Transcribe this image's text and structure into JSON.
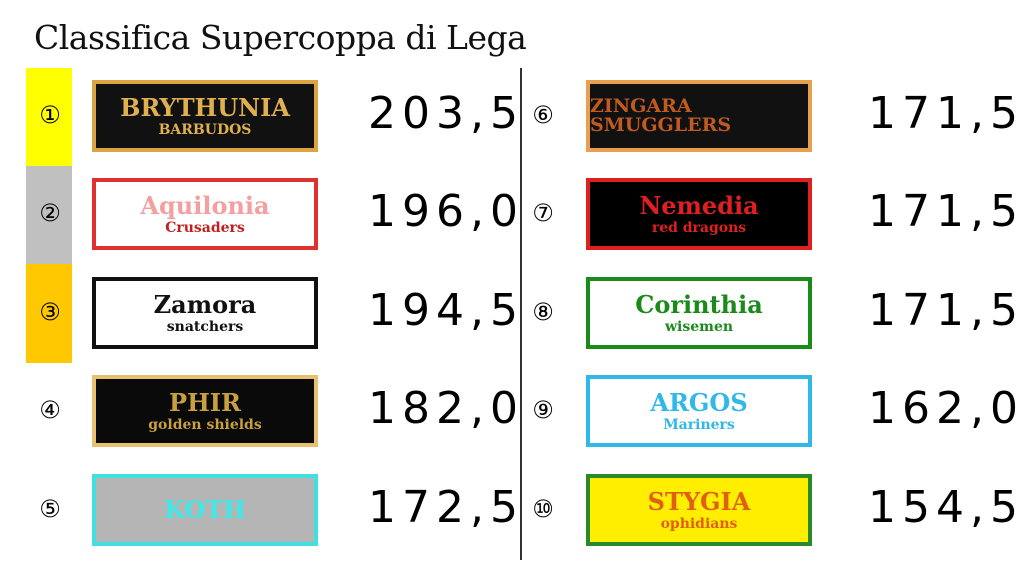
{
  "title": "Classifica Supercoppa di Lega",
  "colors": {
    "first": "#ffff00",
    "second": "#c0c0c0",
    "third": "#ffc800"
  },
  "standings": [
    {
      "rank": "①",
      "team": "BRYTHUNIA",
      "sub": "BARBUDOS",
      "score": "203,5"
    },
    {
      "rank": "②",
      "team": "Aquilonia",
      "sub": "Crusaders",
      "score": "196,0"
    },
    {
      "rank": "③",
      "team": "Zamora",
      "sub": "snatchers",
      "score": "194,5"
    },
    {
      "rank": "④",
      "team": "PHIR",
      "sub": "golden shields",
      "score": "182,0"
    },
    {
      "rank": "⑤",
      "team": "KOTH",
      "sub": "",
      "score": "172,5"
    },
    {
      "rank": "⑥",
      "team": "ZINGARA SMUGGLERS",
      "sub": "",
      "score": "171,5"
    },
    {
      "rank": "⑦",
      "team": "Nemedia",
      "sub": "red dragons",
      "score": "171,5"
    },
    {
      "rank": "⑧",
      "team": "Corinthia",
      "sub": "wisemen",
      "score": "171,5"
    },
    {
      "rank": "⑨",
      "team": "ARGOS",
      "sub": "Mariners",
      "score": "162,0"
    },
    {
      "rank": "⑩",
      "team": "STYGIA",
      "sub": "ophidians",
      "score": "154,5"
    }
  ]
}
